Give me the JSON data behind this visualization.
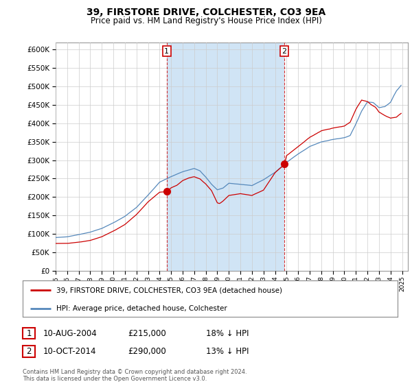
{
  "title": "39, FIRSTORE DRIVE, COLCHESTER, CO3 9EA",
  "subtitle": "Price paid vs. HM Land Registry's House Price Index (HPI)",
  "hpi_color": "#5588bb",
  "price_color": "#cc0000",
  "highlight_color": "#d0e4f5",
  "marker1_year": 2004.62,
  "marker1_price": 215000,
  "marker2_year": 2014.79,
  "marker2_price": 290000,
  "legend_line1": "39, FIRSTORE DRIVE, COLCHESTER, CO3 9EA (detached house)",
  "legend_line2": "HPI: Average price, detached house, Colchester",
  "note1_date": "10-AUG-2004",
  "note1_price": "£215,000",
  "note1_hpi": "18% ↓ HPI",
  "note2_date": "10-OCT-2014",
  "note2_price": "£290,000",
  "note2_hpi": "13% ↓ HPI",
  "footer": "Contains HM Land Registry data © Crown copyright and database right 2024.\nThis data is licensed under the Open Government Licence v3.0.",
  "yticks": [
    0,
    50000,
    100000,
    150000,
    200000,
    250000,
    300000,
    350000,
    400000,
    450000,
    500000,
    550000,
    600000
  ],
  "xstart": 1995,
  "xend": 2025
}
